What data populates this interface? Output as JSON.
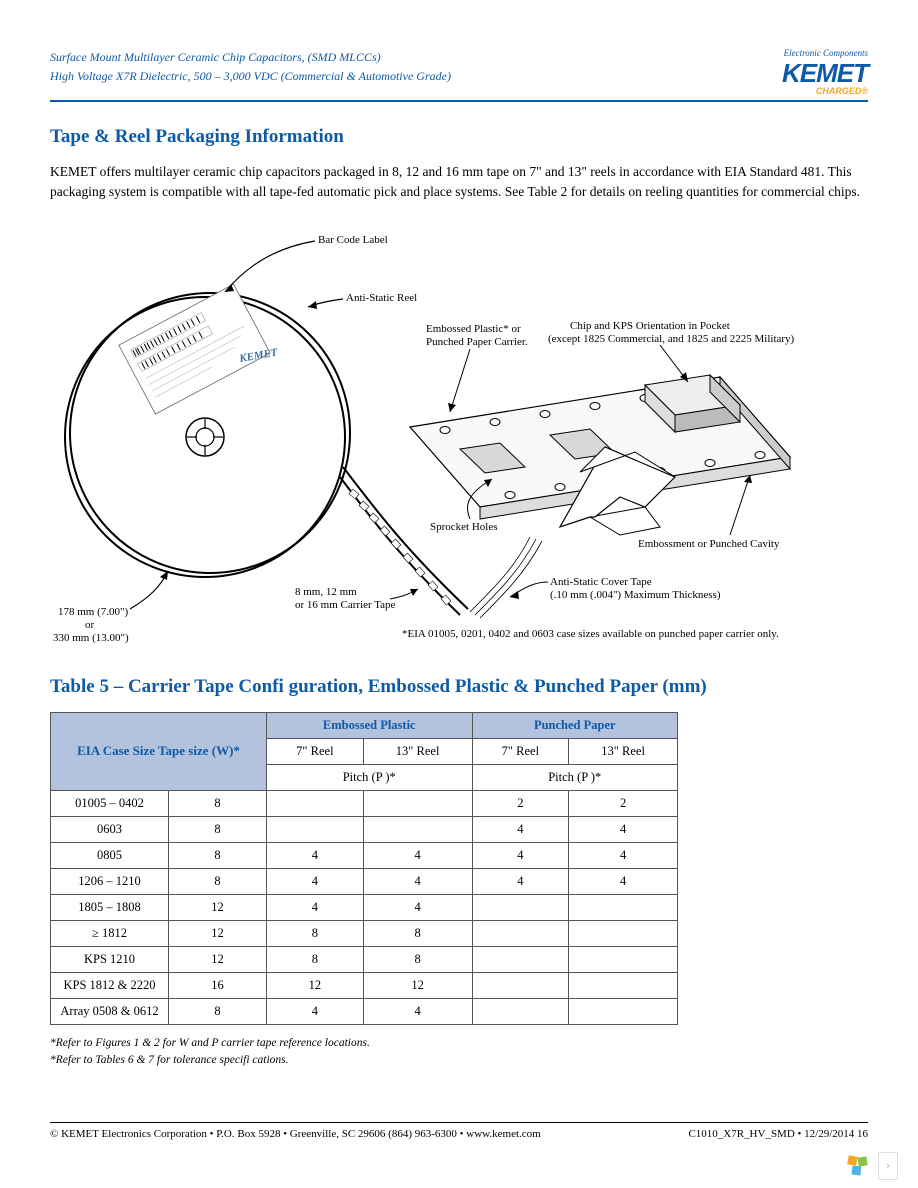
{
  "header": {
    "line1": "Surface Mount Multilayer Ceramic Chip Capacitors, (SMD MLCCs)",
    "line2": "High Voltage X7R Dielectric, 500 – 3,000 VDC (Commercial & Automotive Grade)",
    "logo_tagline": "Electronic Components",
    "logo_main": "KEMET",
    "logo_charged": "CHARGED®"
  },
  "section": {
    "title": "Tape & Reel Packaging Information",
    "body": "KEMET offers multilayer ceramic chip capacitors packaged in 8, 12 and 16 mm tape on 7\" and 13\" reels in accordance with EIA Standard 481. This packaging system is compatible with all tape-fed automatic pick and place systems. See Table 2 for details on reeling quantities for commercial chips."
  },
  "diagram": {
    "bar_code_label": "Bar Code Label",
    "anti_static_reel": "Anti-Static Reel",
    "embossed_carrier_1": "Embossed Plastic* or",
    "embossed_carrier_2": "Punched Paper Carrier.",
    "chip_orient_1": "Chip and KPS Orientation in Pocket",
    "chip_orient_2": "(except 1825 Commercial, and 1825 and 2225 Military)",
    "sprocket_holes": "Sprocket Holes",
    "embossment_cavity": "Embossment or Punched Cavity",
    "anti_static_cover_1": "Anti-Static Cover Tape",
    "anti_static_cover_2": "(.10 mm (.004\") Maximum Thickness)",
    "carrier_tape_1": "8 mm, 12 mm",
    "carrier_tape_2": "or 16 mm Carrier Tape",
    "reel_size_1": "178 mm (7.00\")",
    "reel_size_2": "or",
    "reel_size_3": "330 mm (13.00\")",
    "eia_note": "*EIA 01005, 0201, 0402 and 0603 case sizes available on punched paper carrier only.",
    "kemet_stamp": "KEMET"
  },
  "table": {
    "title": "Table 5 – Carrier Tape Confi guration, Embossed Plastic & Punched Paper (mm)",
    "head_eia": "EIA Case Size",
    "head_tape": "Tape size (W)*",
    "head_emb": "Embossed Plastic",
    "head_punch": "Punched Paper",
    "head_7reel": "7\" Reel",
    "head_13reel": "13\" Reel",
    "head_pitch": "Pitch (P )*",
    "rows": [
      {
        "case": "01005 – 0402",
        "w": "8",
        "e7": "",
        "e13": "",
        "p7": "2",
        "p13": "2"
      },
      {
        "case": "0603",
        "w": "8",
        "e7": "",
        "e13": "",
        "p7": "4",
        "p13": "4"
      },
      {
        "case": "0805",
        "w": "8",
        "e7": "4",
        "e13": "4",
        "p7": "4",
        "p13": "4"
      },
      {
        "case": "1206 – 1210",
        "w": "8",
        "e7": "4",
        "e13": "4",
        "p7": "4",
        "p13": "4"
      },
      {
        "case": "1805 – 1808",
        "w": "12",
        "e7": "4",
        "e13": "4",
        "p7": "",
        "p13": ""
      },
      {
        "case": "≥ 1812",
        "w": "12",
        "e7": "8",
        "e13": "8",
        "p7": "",
        "p13": ""
      },
      {
        "case": "KPS 1210",
        "w": "12",
        "e7": "8",
        "e13": "8",
        "p7": "",
        "p13": ""
      },
      {
        "case": "KPS 1812 & 2220",
        "w": "16",
        "e7": "12",
        "e13": "12",
        "p7": "",
        "p13": ""
      },
      {
        "case": "Array 0508 & 0612",
        "w": "8",
        "e7": "4",
        "e13": "4",
        "p7": "",
        "p13": ""
      }
    ],
    "footnote1": "*Refer to Figures 1 & 2 for W and P    carrier tape reference locations.",
    "footnote2": "*Refer to Tables 6 & 7 for tolerance specifi cations."
  },
  "footer": {
    "left": "© KEMET Electronics Corporation • P.O. Box 5928 • Greenville, SC 29606 (864) 963-6300 • www.kemet.com",
    "right": "C1010_X7R_HV_SMD • 12/29/2014 16"
  },
  "colors": {
    "blue": "#0d5aa7",
    "orange": "#f5a623",
    "table_header_bg": "#b3c2dd",
    "border": "#555555"
  }
}
